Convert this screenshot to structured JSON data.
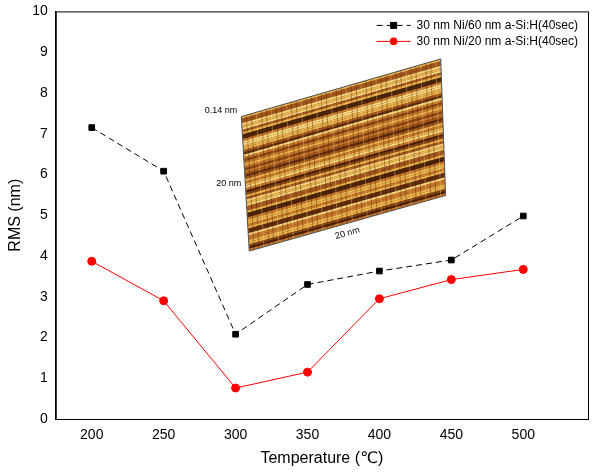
{
  "chart_data": {
    "type": "line",
    "x_label": "Temperature (℃)",
    "y_label": "RMS (nm)",
    "x": [
      200,
      250,
      300,
      350,
      400,
      450,
      500
    ],
    "series": [
      {
        "name": "30 nm Ni/60 nm a-Si:H(40sec)",
        "color": "#000000",
        "marker": "square",
        "line_style": "dashed",
        "values": [
          7.15,
          6.08,
          2.08,
          3.3,
          3.63,
          3.9,
          4.98
        ]
      },
      {
        "name": "30 nm Ni/20 nm a-Si:H(40sec)",
        "color": "#ff0000",
        "marker": "circle",
        "line_style": "solid",
        "values": [
          3.87,
          2.9,
          0.76,
          1.15,
          2.95,
          3.42,
          3.67
        ]
      }
    ],
    "xlim": [
      175,
      545
    ],
    "xticks": [
      200,
      250,
      300,
      350,
      400,
      450,
      500
    ],
    "ylim": [
      0,
      10
    ],
    "yticks": [
      0,
      1,
      2,
      3,
      4,
      5,
      6,
      7,
      8,
      9,
      10
    ],
    "grid": false,
    "legend": "upper right",
    "annotations": [
      "0.14 nm",
      "20 nm",
      "20 nm"
    ]
  }
}
